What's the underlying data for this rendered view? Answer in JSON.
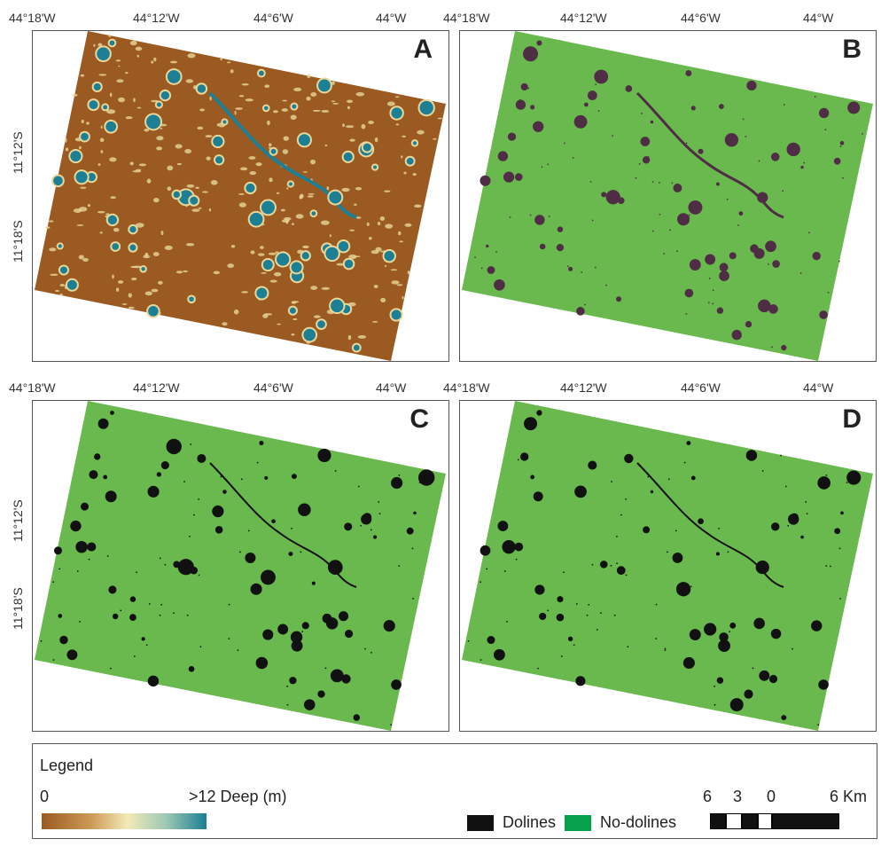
{
  "panels": [
    {
      "id": "A",
      "label": "A",
      "scheme": "depth"
    },
    {
      "id": "B",
      "label": "B",
      "scheme": "dolines-purple"
    },
    {
      "id": "C",
      "label": "C",
      "scheme": "dolines-black"
    },
    {
      "id": "D",
      "label": "D",
      "scheme": "dolines-black"
    }
  ],
  "longitude_ticks": [
    "44°18'W",
    "44°12'W",
    "44°6'W",
    "44°W"
  ],
  "latitude_ticks": [
    "11°12'S",
    "11°18'S"
  ],
  "legend": {
    "title": "Legend",
    "gradient_min": "0",
    "gradient_max": ">12 Deep (m)",
    "dolines_label": "Dolines",
    "nodolines_label": "No-dolines",
    "scalebar_labels": [
      "6",
      "3",
      "0",
      "6 Km"
    ]
  },
  "colors": {
    "depth_base": "#9a5a22",
    "depth_light": "#e9d79a",
    "depth_deep": "#1c7f93",
    "green": "#6ab94e",
    "purple": "#4f2d44",
    "black": "#111111",
    "nodolines_swatch": "#07a04b"
  }
}
